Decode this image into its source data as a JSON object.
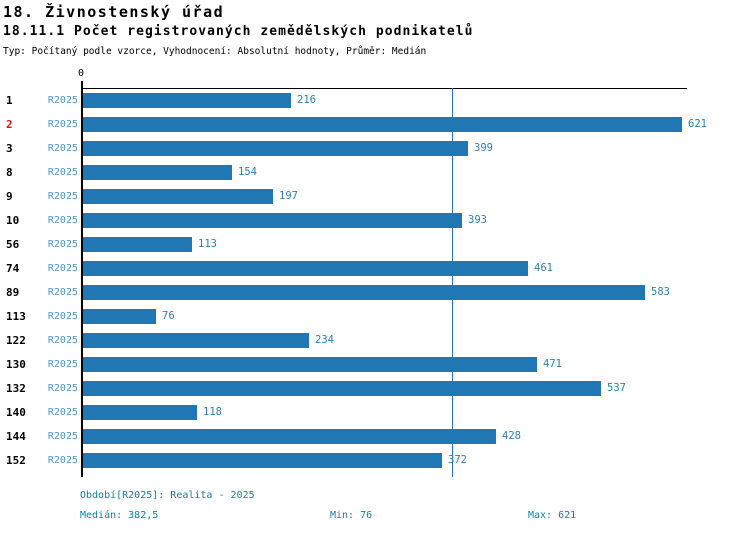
{
  "header": {
    "title1": "18. Živnostenský úřad",
    "title2": "18.11.1 Počet registrovaných zemědělských podnikatelů",
    "meta": "Typ: Počítaný podle vzorce, Vyhodnocení: Absolutní hodnoty, Průměr: Medián"
  },
  "chart_data": {
    "type": "bar",
    "orientation": "horizontal",
    "title": "18.11.1 Počet registrovaných zemědělských podnikatelů",
    "series_label": "R2025",
    "categories": [
      "1",
      "2",
      "3",
      "8",
      "9",
      "10",
      "56",
      "74",
      "89",
      "113",
      "122",
      "130",
      "132",
      "140",
      "144",
      "152"
    ],
    "values": [
      216,
      621,
      399,
      154,
      197,
      393,
      113,
      461,
      583,
      76,
      234,
      471,
      537,
      118,
      428,
      372
    ],
    "highlighted_category": "2",
    "axis": {
      "zero_label": "0",
      "min": 0,
      "max": 621
    },
    "median_line_value": 382.5,
    "stats": {
      "median": "382,5",
      "min": 76,
      "max": 621
    },
    "grid": "off",
    "legend": "none",
    "colors": {
      "bar": "#1f77b4",
      "median_line": "#1f77b4",
      "value_label": "#2e7fb2",
      "series_label": "#4f94c8",
      "category_label": "#000000",
      "category_highlight": "#e01818",
      "axis": "#000000",
      "footer_text": "#16809f"
    }
  },
  "footer": {
    "period": "Období[R2025]: Realita - 2025",
    "median": "Medián: 382,5",
    "min": "Min: 76",
    "max": "Max: 621"
  }
}
